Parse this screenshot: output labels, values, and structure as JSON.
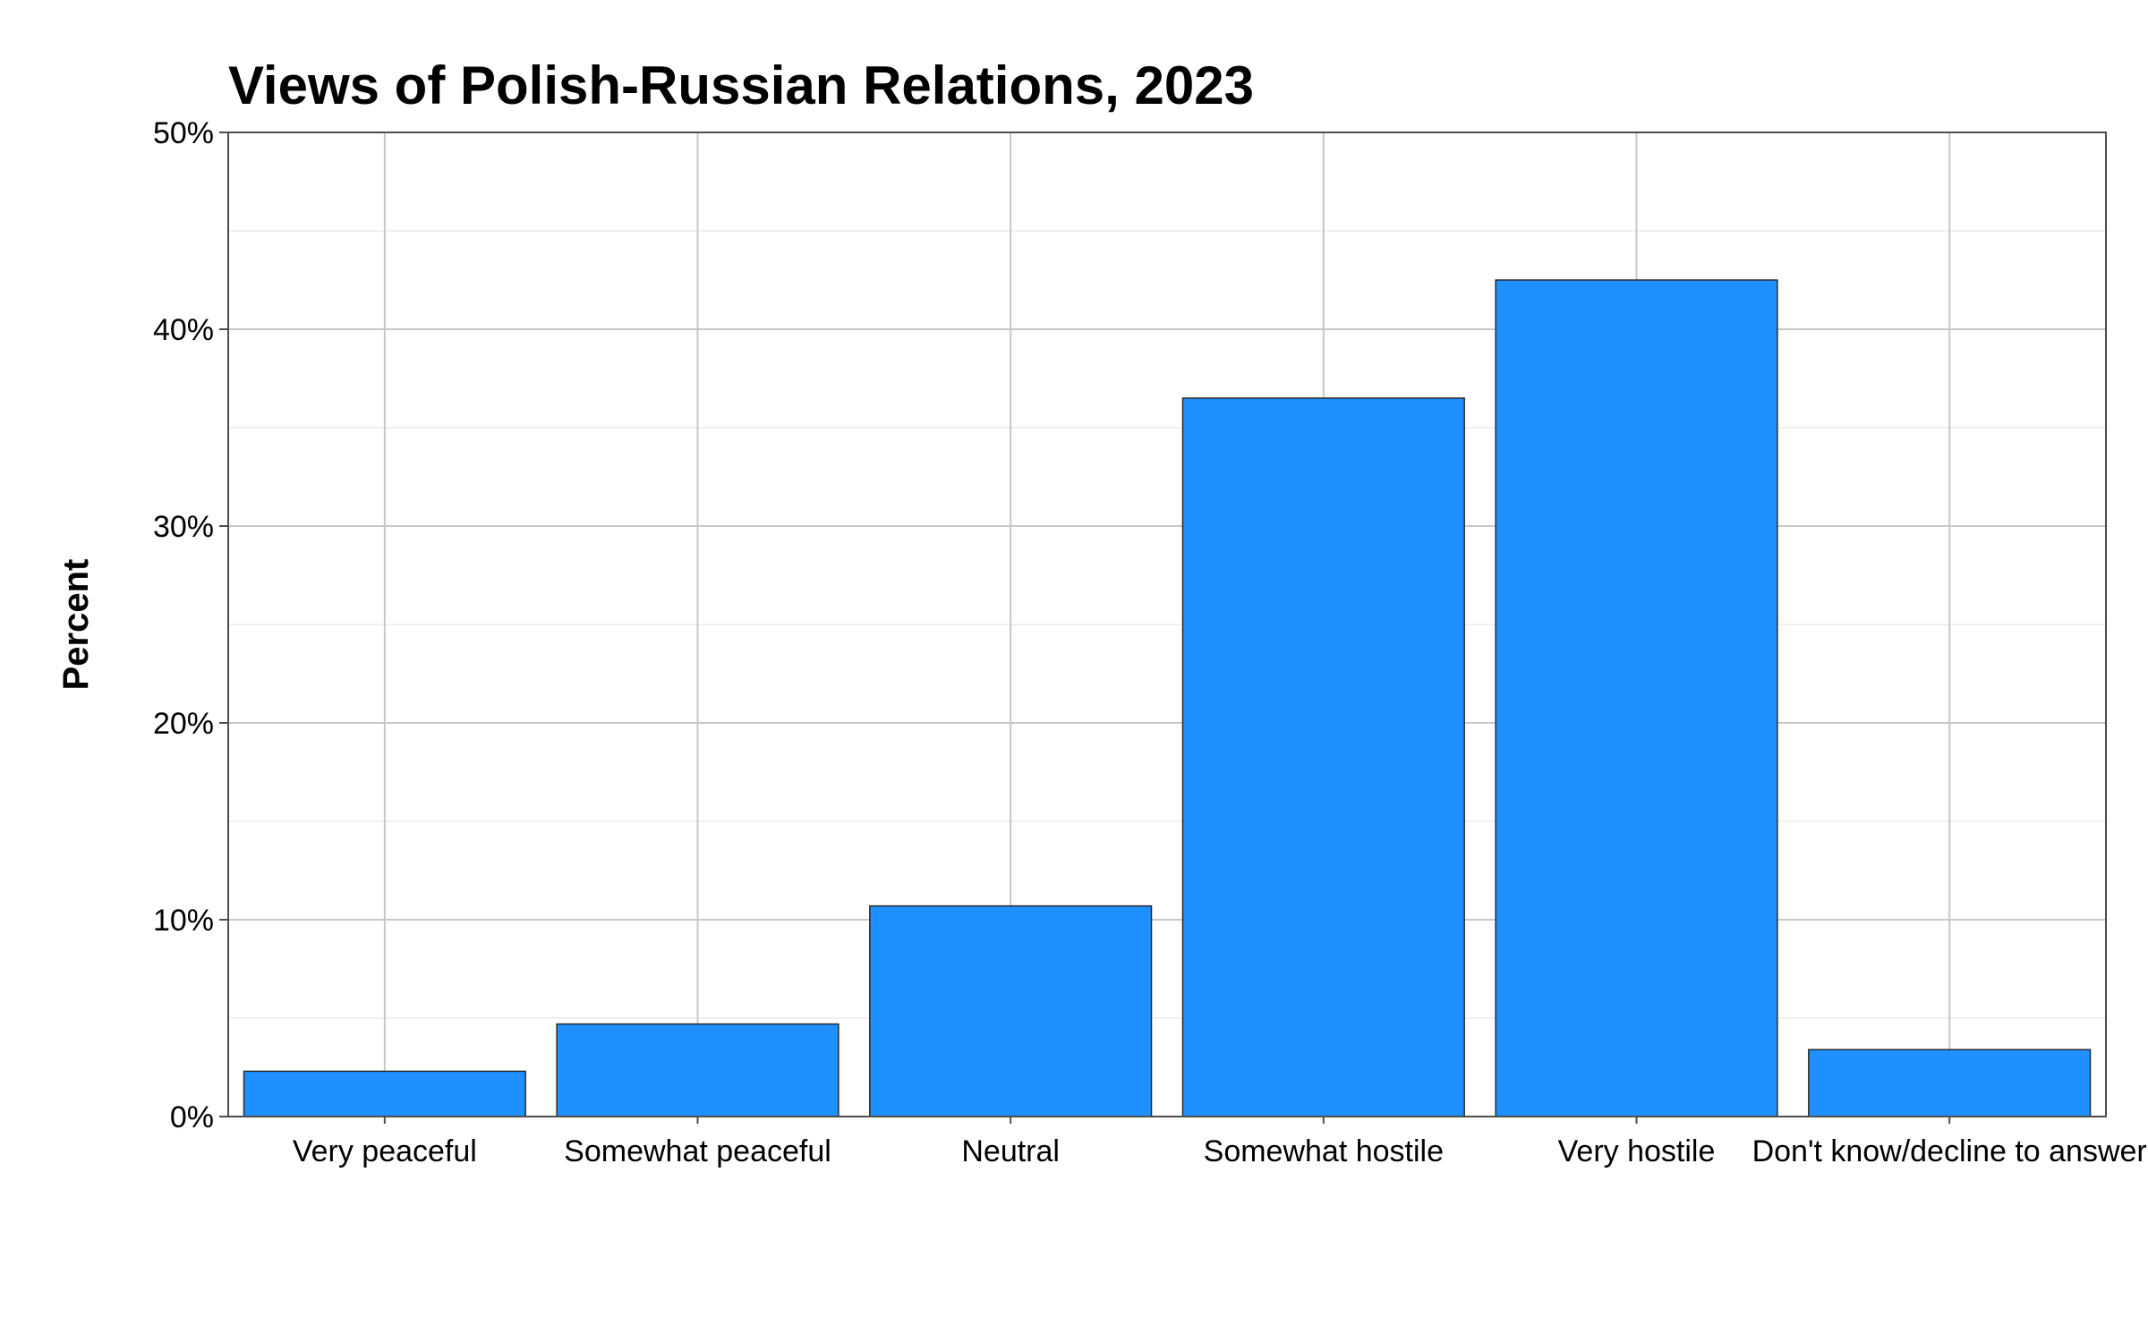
{
  "chart_data": {
    "type": "bar",
    "title": "Views of Polish-Russian Relations, 2023",
    "xlabel": "",
    "ylabel": "Percent",
    "categories": [
      "Very peaceful",
      "Somewhat peaceful",
      "Neutral",
      "Somewhat hostile",
      "Very hostile",
      "Don't know/decline to answer"
    ],
    "values": [
      2.3,
      4.7,
      10.7,
      36.5,
      42.5,
      3.4
    ],
    "ylim": [
      0,
      50
    ],
    "yticks": [
      0,
      10,
      20,
      30,
      40,
      50
    ],
    "ytick_labels": [
      "0%",
      "10%",
      "20%",
      "30%",
      "40%",
      "50%"
    ],
    "grid": true,
    "bar_color": "#1E90FF",
    "bar_edge_color": "#2a2a2a"
  }
}
